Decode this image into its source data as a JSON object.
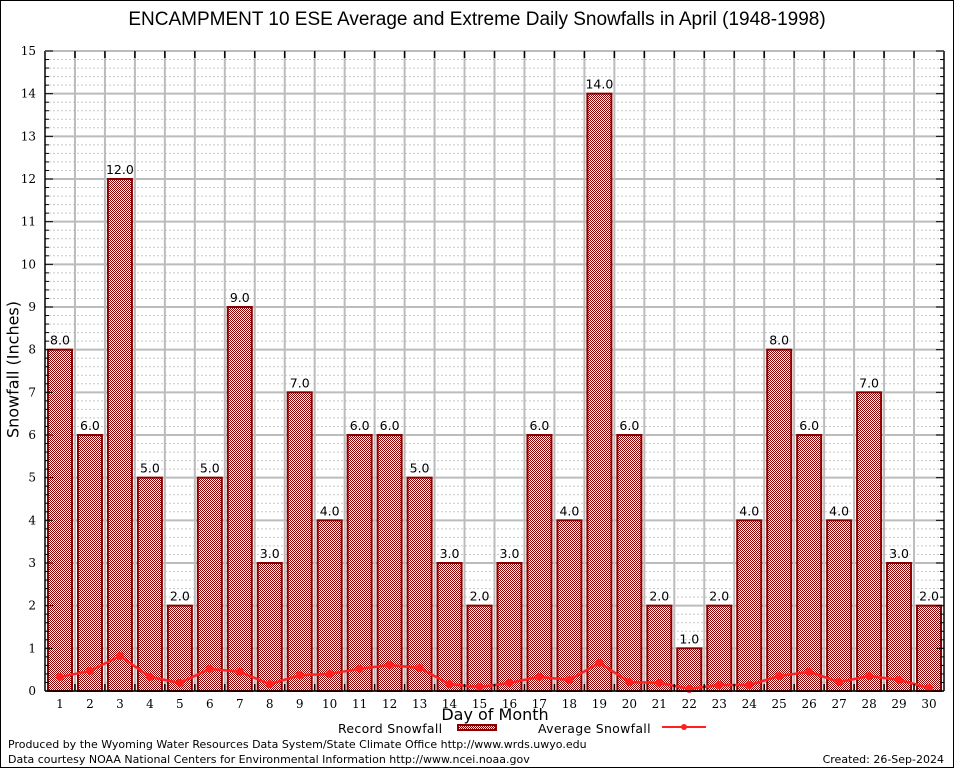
{
  "chart_data": {
    "type": "bar",
    "title": "ENCAMPMENT 10 ESE Average and Extreme Daily Snowfalls in April (1948-1998)",
    "xlabel": "Day of Month",
    "ylabel": "Snowfall (Inches)",
    "ylim": [
      0,
      15
    ],
    "y_ticks": [
      "0",
      "1",
      "2",
      "3",
      "4",
      "5",
      "6",
      "7",
      "8",
      "9",
      "10",
      "11",
      "12",
      "13",
      "14",
      "15"
    ],
    "grid": true,
    "legend_position": "bottom-center",
    "categories": [
      "1",
      "2",
      "3",
      "4",
      "5",
      "6",
      "7",
      "8",
      "9",
      "10",
      "11",
      "12",
      "13",
      "14",
      "15",
      "16",
      "17",
      "18",
      "19",
      "20",
      "21",
      "22",
      "23",
      "24",
      "25",
      "26",
      "27",
      "28",
      "29",
      "30"
    ],
    "series": [
      {
        "name": "Record Snowfall",
        "type": "bar",
        "color": "#8b0000",
        "values": [
          8.0,
          6.0,
          12.0,
          5.0,
          2.0,
          5.0,
          9.0,
          3.0,
          7.0,
          4.0,
          6.0,
          6.0,
          5.0,
          3.0,
          2.0,
          3.0,
          6.0,
          4.0,
          14.0,
          6.0,
          2.0,
          1.0,
          2.0,
          4.0,
          8.0,
          6.0,
          4.0,
          7.0,
          3.0,
          2.0
        ],
        "data_labels": [
          "8.0",
          "6.0",
          "12.0",
          "5.0",
          "2.0",
          "5.0",
          "9.0",
          "3.0",
          "7.0",
          "4.0",
          "6.0",
          "6.0",
          "5.0",
          "3.0",
          "2.0",
          "3.0",
          "6.0",
          "4.0",
          "14.0",
          "6.0",
          "2.0",
          "1.0",
          "2.0",
          "4.0",
          "8.0",
          "6.0",
          "4.0",
          "7.0",
          "3.0",
          "2.0"
        ]
      },
      {
        "name": "Average Snowfall",
        "type": "line",
        "color": "#ff2020",
        "values": [
          0.33,
          0.47,
          0.82,
          0.33,
          0.19,
          0.52,
          0.45,
          0.16,
          0.37,
          0.4,
          0.52,
          0.61,
          0.54,
          0.16,
          0.09,
          0.19,
          0.33,
          0.26,
          0.66,
          0.21,
          0.19,
          0.05,
          0.14,
          0.14,
          0.35,
          0.45,
          0.21,
          0.35,
          0.26,
          0.07
        ]
      }
    ]
  },
  "legend": {
    "record_label": "Record Snowfall",
    "average_label": "Average Snowfall"
  },
  "footer": {
    "produced_by": "Produced by the Wyoming Water Resources Data System/State Climate Office http://www.wrds.uwyo.edu",
    "data_courtesy": "Data courtesy NOAA National Centers for Environmental Information http://www.ncei.noaa.gov",
    "created": "Created: 26-Sep-2024"
  }
}
